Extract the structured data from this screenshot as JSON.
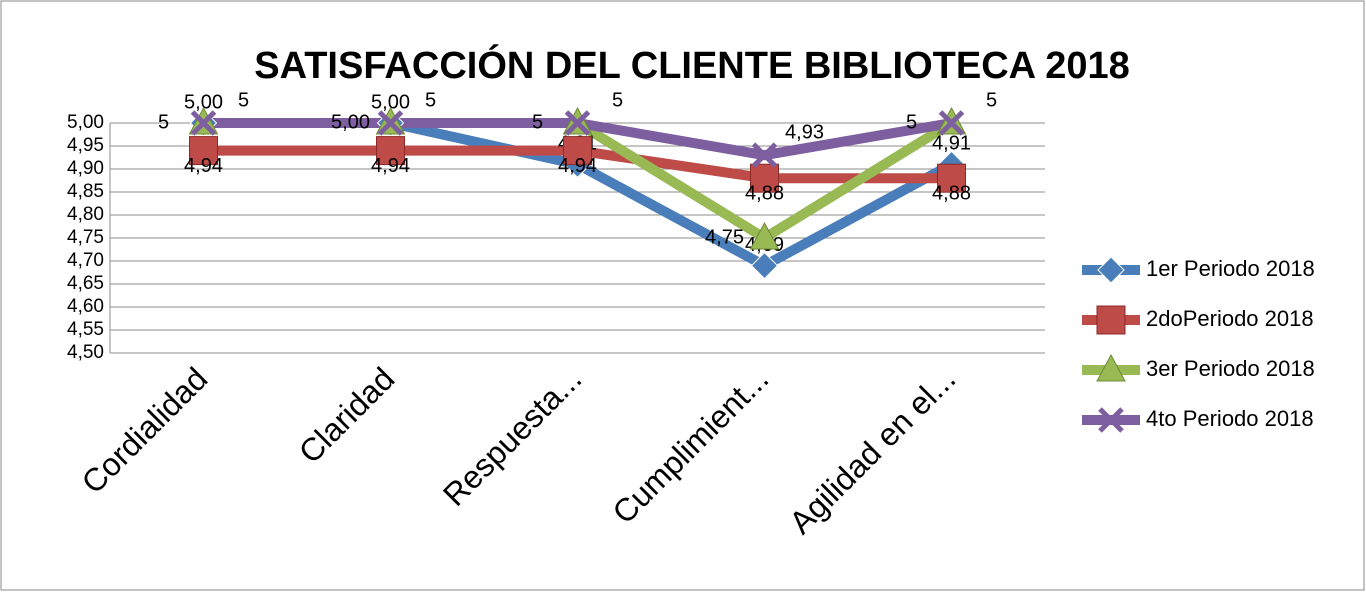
{
  "chart_data": {
    "type": "line",
    "title": "SATISFACCIÓN DEL CLIENTE BIBLIOTECA 2018",
    "categories": [
      "Cordialidad",
      "Claridad",
      "Respuesta...",
      "Cumplimient...",
      "Agilidad en el..."
    ],
    "series": [
      {
        "name": "1er Periodo 2018",
        "color": "#4a7ebb",
        "marker": "diamond",
        "values": [
          5.0,
          5.0,
          4.91,
          4.69,
          4.91
        ],
        "value_labels": [
          "5,00",
          "5,00",
          "4,91",
          "4,69",
          "4,91"
        ]
      },
      {
        "name": "2doPeriodo 2018",
        "color": "#be4b48",
        "marker": "square",
        "values": [
          4.94,
          4.94,
          4.94,
          4.88,
          4.88
        ],
        "value_labels": [
          "4,94",
          "4,94",
          "4,94",
          "4,88",
          "4,88"
        ]
      },
      {
        "name": "3er Periodo 2018",
        "color": "#98b954",
        "marker": "triangle",
        "values": [
          5,
          5,
          5,
          4.75,
          5
        ],
        "value_labels": [
          "5",
          "5,00",
          "5",
          "4,75",
          "5"
        ]
      },
      {
        "name": "4to Periodo 2018",
        "color": "#7d5fa0",
        "marker": "x",
        "values": [
          5,
          5,
          5,
          4.93,
          5
        ],
        "value_labels": [
          "5",
          "5",
          "5",
          "4,93",
          "5"
        ]
      }
    ],
    "ylim": [
      4.5,
      5.0
    ],
    "yticks": [
      {
        "value": 4.5,
        "label": "4,50"
      },
      {
        "value": 4.55,
        "label": "4,55"
      },
      {
        "value": 4.6,
        "label": "4,60"
      },
      {
        "value": 4.65,
        "label": "4,65"
      },
      {
        "value": 4.7,
        "label": "4,70"
      },
      {
        "value": 4.75,
        "label": "4,75"
      },
      {
        "value": 4.8,
        "label": "4,80"
      },
      {
        "value": 4.85,
        "label": "4,85"
      },
      {
        "value": 4.9,
        "label": "4,90"
      },
      {
        "value": 4.95,
        "label": "4,95"
      },
      {
        "value": 5.0,
        "label": "5,00"
      }
    ],
    "grid": true,
    "legend": "right"
  }
}
